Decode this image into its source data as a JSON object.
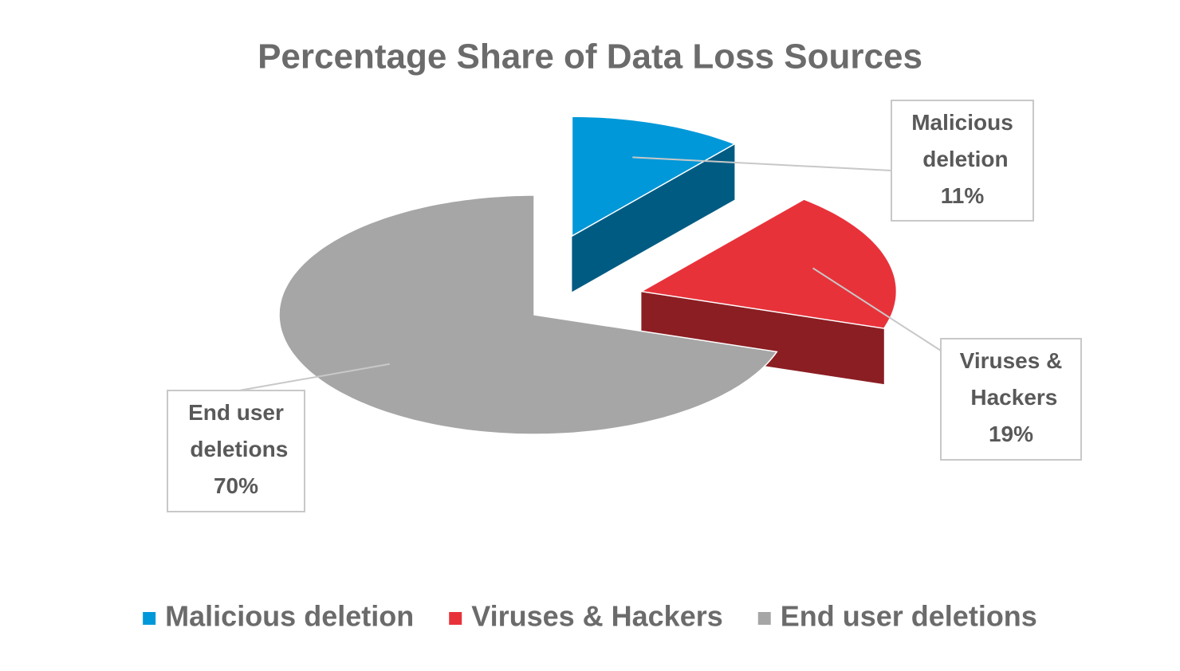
{
  "chart_data": {
    "type": "pie",
    "title": "Percentage Share of Data Loss Sources",
    "categories": [
      "Malicious deletion",
      "Viruses & Hackers",
      "End user deletions"
    ],
    "values": [
      11,
      19,
      70
    ],
    "value_labels": [
      "11%",
      "19%",
      "70%"
    ],
    "colors": [
      "#0098d8",
      "#e8323a",
      "#a6a6a6"
    ],
    "legend": "bottom"
  }
}
